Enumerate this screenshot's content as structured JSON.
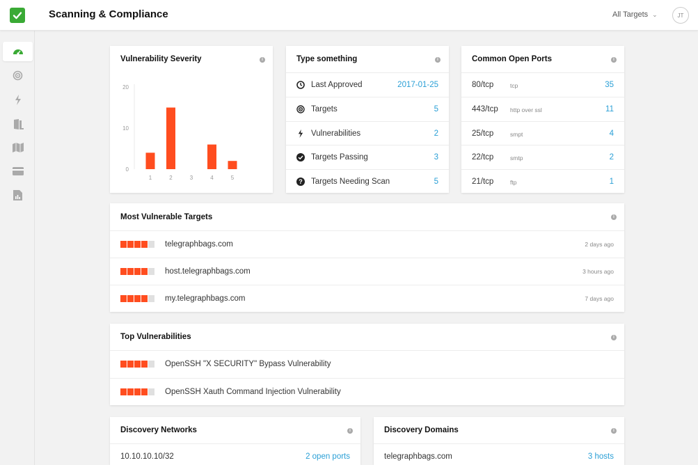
{
  "header": {
    "title": "Scanning & Compliance",
    "targets_select": "All Targets",
    "avatar_initials": "JT",
    "logo_color": "#3aaa35"
  },
  "sidebar": {
    "items": [
      {
        "icon": "dashboard-gauge-icon",
        "active": true
      },
      {
        "icon": "target-icon",
        "active": false
      },
      {
        "icon": "lightning-icon",
        "active": false
      },
      {
        "icon": "door-icon",
        "active": false
      },
      {
        "icon": "map-icon",
        "active": false
      },
      {
        "icon": "credit-card-icon",
        "active": false
      },
      {
        "icon": "report-icon",
        "active": false
      }
    ]
  },
  "colors": {
    "accent_red": "#ff4d1f",
    "link_blue": "#2a9fd6",
    "bar_empty": "#e0e0e0"
  },
  "severity_card": {
    "title": "Vulnerability Severity",
    "chart_data": {
      "type": "bar",
      "categories": [
        "1",
        "2",
        "3",
        "4",
        "5"
      ],
      "values": [
        4,
        15,
        0,
        6,
        2
      ],
      "ylim": [
        0,
        20
      ],
      "yticks": [
        0,
        10,
        20
      ],
      "title": "",
      "xlabel": "",
      "ylabel": ""
    }
  },
  "summary_card": {
    "title": "Type something",
    "rows": [
      {
        "icon": "clock-icon",
        "label": "Last Approved",
        "value": "2017-01-25"
      },
      {
        "icon": "target-icon",
        "label": "Targets",
        "value": "5"
      },
      {
        "icon": "lightning-icon",
        "label": "Vulnerabilities",
        "value": "2"
      },
      {
        "icon": "check-circle-icon",
        "label": "Targets Passing",
        "value": "3"
      },
      {
        "icon": "question-circle-icon",
        "label": "Targets Needing Scan",
        "value": "5"
      }
    ]
  },
  "ports_card": {
    "title": "Common Open Ports",
    "rows": [
      {
        "port": "80/tcp",
        "service": "tcp",
        "count": "35"
      },
      {
        "port": "443/tcp",
        "service": "http over ssl",
        "count": "11"
      },
      {
        "port": "25/tcp",
        "service": "smpt",
        "count": "4"
      },
      {
        "port": "22/tcp",
        "service": "smtp",
        "count": "2"
      },
      {
        "port": "21/tcp",
        "service": "ftp",
        "count": "1"
      }
    ]
  },
  "targets_card": {
    "title": "Most Vulnerable Targets",
    "rows": [
      {
        "name": "telegraphbags.com",
        "time": "2 days ago",
        "severity": 4
      },
      {
        "name": "host.telegraphbags.com",
        "time": "3 hours ago",
        "severity": 4
      },
      {
        "name": "my.telegraphbags.com",
        "time": "7 days ago",
        "severity": 4
      }
    ]
  },
  "vulns_card": {
    "title": "Top Vulnerabilities",
    "rows": [
      {
        "name": "OpenSSH \"X SECURITY\" Bypass Vulnerability",
        "severity": 4
      },
      {
        "name": "OpenSSH Xauth Command Injection Vulnerability",
        "severity": 4
      }
    ]
  },
  "networks_card": {
    "title": "Discovery Networks",
    "rows": [
      {
        "name": "10.10.10.10/32",
        "value": "2 open ports"
      }
    ]
  },
  "domains_card": {
    "title": "Discovery Domains",
    "rows": [
      {
        "name": "telegraphbags.com",
        "value": "3 hosts"
      }
    ]
  }
}
